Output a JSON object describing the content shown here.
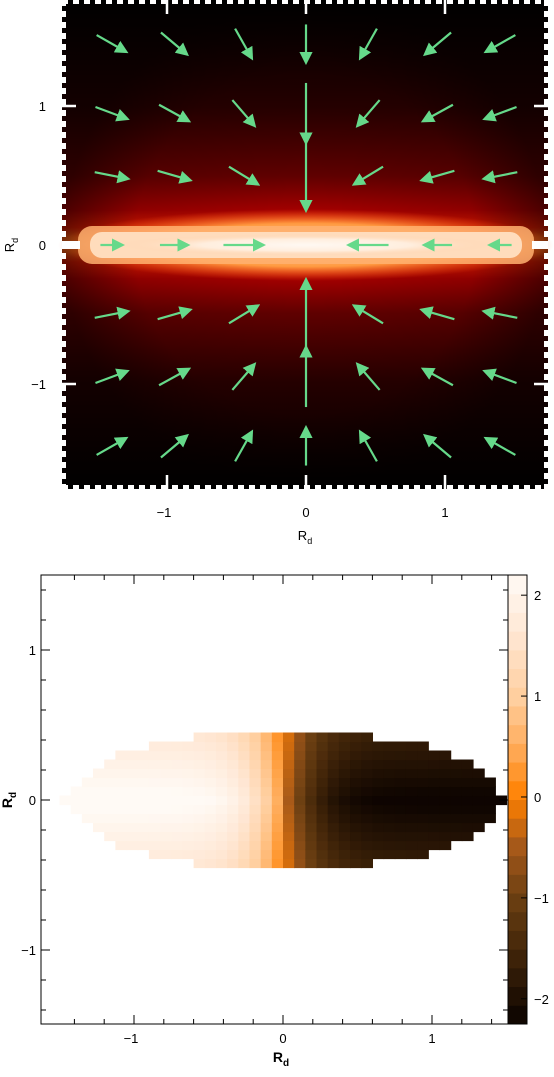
{
  "chart_data": [
    {
      "type": "heatmap",
      "xlabel": "R",
      "xlabel_sub": "d",
      "ylabel": "R",
      "ylabel_sub": "d",
      "xlim": [
        -1.75,
        1.75
      ],
      "ylim": [
        -1.75,
        1.75
      ],
      "xticks": [
        {
          "value": -1,
          "label": "−1"
        },
        {
          "value": 0,
          "label": "0"
        },
        {
          "value": 1,
          "label": "1"
        }
      ],
      "yticks": [
        {
          "value": 1,
          "label": "1"
        },
        {
          "value": 0,
          "label": "0"
        },
        {
          "value": -1,
          "label": "−1"
        }
      ],
      "colormap": [
        "#000000",
        "#5a0000",
        "#c00000",
        "#ff3000",
        "#ff9040",
        "#ffd8b0",
        "#fff4ec"
      ],
      "arrow_color": "#66d98a",
      "arrow_grid": {
        "x": [
          -1.4,
          -0.95,
          -0.45,
          0.0,
          0.45,
          0.95,
          1.4
        ],
        "y": [
          1.45,
          0.95,
          0.5,
          0.0,
          -0.5,
          -0.95,
          -1.45
        ]
      },
      "grid": false
    },
    {
      "type": "heatmap",
      "xlabel": "R",
      "xlabel_sub": "d",
      "ylabel": "R",
      "ylabel_sub": "d",
      "xlim": [
        -1.5,
        1.6
      ],
      "ylim": [
        -1.5,
        1.5
      ],
      "xticks": [
        {
          "value": -1,
          "label": "−1"
        },
        {
          "value": 0,
          "label": "0"
        },
        {
          "value": 1,
          "label": "1"
        }
      ],
      "yticks": [
        {
          "value": 1,
          "label": "1"
        },
        {
          "value": 0,
          "label": "0"
        },
        {
          "value": -1,
          "label": "−1"
        }
      ],
      "colorbar": {
        "ticks": [
          {
            "value": 2,
            "label": "2"
          },
          {
            "value": 1,
            "label": "1"
          },
          {
            "value": 0,
            "label": "0"
          },
          {
            "value": -1,
            "label": "−1"
          },
          {
            "value": -2,
            "label": "−2"
          }
        ],
        "range": [
          -2.25,
          2.2
        ],
        "levels": 24
      },
      "colormap": [
        {
          "v": -2.25,
          "c": "#0a0200"
        },
        {
          "v": -1.6,
          "c": "#3d2208"
        },
        {
          "v": -1.0,
          "c": "#6b3f12"
        },
        {
          "v": -0.5,
          "c": "#a4581a"
        },
        {
          "v": 0.0,
          "c": "#ff8000"
        },
        {
          "v": 0.5,
          "c": "#ffad5c"
        },
        {
          "v": 1.0,
          "c": "#ffcfa0"
        },
        {
          "v": 1.6,
          "c": "#ffe6d2"
        },
        {
          "v": 2.2,
          "c": "#fffaf5"
        }
      ],
      "grid": false
    }
  ]
}
